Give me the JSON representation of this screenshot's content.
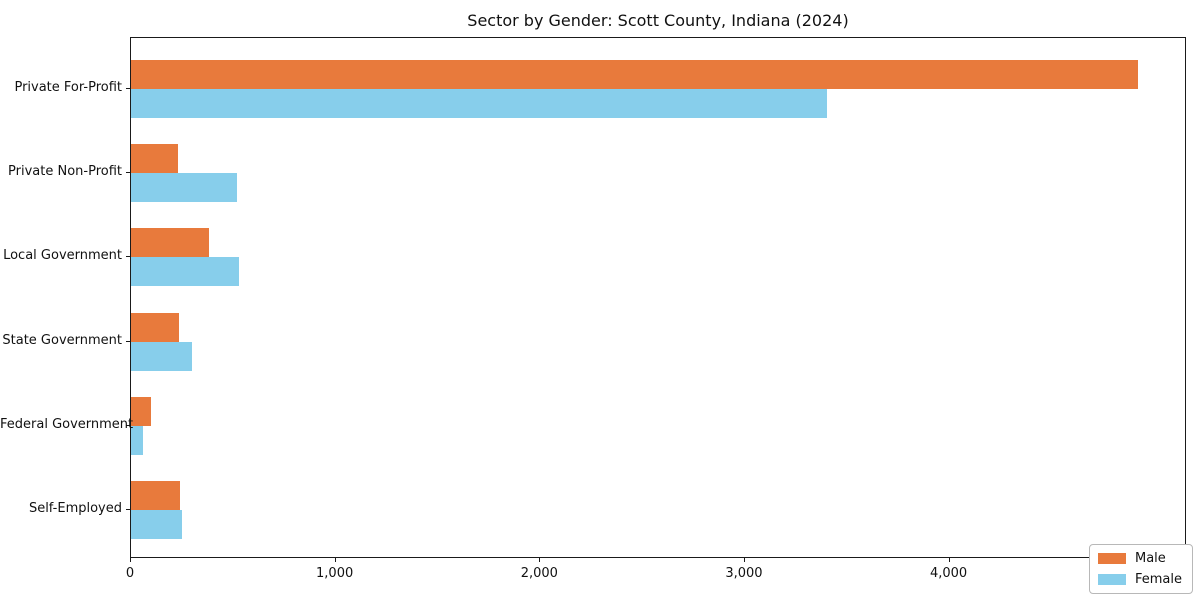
{
  "title": "Sector by Gender: Scott County, Indiana (2024)",
  "chart_data": {
    "type": "bar",
    "orientation": "horizontal",
    "title": "Sector by Gender: Scott County, Indiana (2024)",
    "xlabel": "",
    "ylabel": "",
    "categories": [
      "Private For-Profit",
      "Private Non-Profit",
      "Local Government",
      "State Government",
      "Federal Government",
      "Self-Employed"
    ],
    "series": [
      {
        "name": "Male",
        "color": "#e87a3c",
        "values": [
          4920,
          230,
          380,
          235,
          100,
          240
        ]
      },
      {
        "name": "Female",
        "color": "#87ceeb",
        "values": [
          3400,
          520,
          530,
          300,
          60,
          250
        ]
      }
    ],
    "xlim": [
      0,
      5160
    ],
    "xticks": [
      0,
      1000,
      2000,
      3000,
      4000,
      5000
    ],
    "xtick_labels": [
      "0",
      "1,000",
      "2,000",
      "3,000",
      "4,000",
      "5,000"
    ],
    "grid": false,
    "legend_position": "lower right"
  },
  "legend": {
    "items": [
      {
        "label": "Male",
        "color": "#e87a3c"
      },
      {
        "label": "Female",
        "color": "#87ceeb"
      }
    ]
  }
}
